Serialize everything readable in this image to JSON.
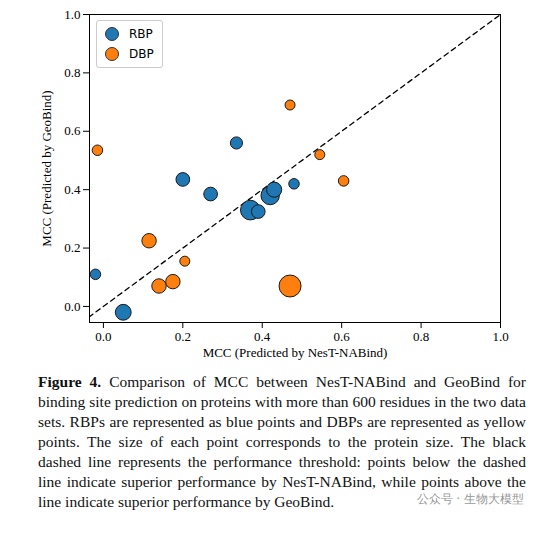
{
  "chart_data": {
    "type": "scatter",
    "x_label": "MCC (Predicted by NesT-NABind)",
    "y_label": "MCC (Predicted by GeoBind)",
    "xlim": [
      -0.035,
      1.0
    ],
    "ylim": [
      -0.055,
      1.0
    ],
    "xticks": [
      {
        "value": 0,
        "label": "0.0"
      },
      {
        "value": 0.2,
        "label": "0.2"
      },
      {
        "value": 0.4,
        "label": "0.4"
      },
      {
        "value": 0.6,
        "label": "0.6"
      },
      {
        "value": 0.8,
        "label": "0.8"
      },
      {
        "value": 1.0,
        "label": "1.0"
      }
    ],
    "yticks": [
      {
        "value": 0,
        "label": "0.0"
      },
      {
        "value": 0.2,
        "label": "0.2"
      },
      {
        "value": 0.4,
        "label": "0.4"
      },
      {
        "value": 0.6,
        "label": "0.6"
      },
      {
        "value": 0.8,
        "label": "0.8"
      },
      {
        "value": 1.0,
        "label": "1.0"
      }
    ],
    "legend": "upper left",
    "grid": false,
    "series": [
      {
        "name": "RBP",
        "color": "#1f77b4",
        "marker": "circle",
        "x": [
          -0.02,
          0.05,
          0.2,
          0.27,
          0.335,
          0.37,
          0.39,
          0.42,
          0.43,
          0.48
        ],
        "values": [
          0.11,
          -0.02,
          0.435,
          0.385,
          0.56,
          0.33,
          0.325,
          0.38,
          0.4,
          0.42
        ],
        "sizes": [
          650,
          1000,
          850,
          850,
          750,
          1300,
          850,
          1200,
          950,
          650
        ]
      },
      {
        "name": "DBP",
        "color": "#ff7f0e",
        "marker": "circle",
        "x": [
          -0.015,
          0.115,
          0.14,
          0.175,
          0.205,
          0.47,
          0.47,
          0.545,
          0.605
        ],
        "values": [
          0.535,
          0.225,
          0.07,
          0.085,
          0.155,
          0.69,
          0.07,
          0.52,
          0.43
        ],
        "sizes": [
          650,
          900,
          900,
          900,
          620,
          620,
          1500,
          620,
          650
        ]
      }
    ],
    "caption": {
      "label": "Figure 4.",
      "text": "Comparison of MCC between NesT-NABind and GeoBind for binding site prediction on proteins with more than 600 residues in the two data sets. RBPs are represented as blue points and DBPs are represented as yellow points. The size of each point corresponds to the protein size. The black dashed line represents the performance threshold: points below the dashed line indicate superior performance by NesT-NABind, while points above the line indicate superior performance by GeoBind."
    },
    "watermark": "公众号 · 生物大模型"
  }
}
